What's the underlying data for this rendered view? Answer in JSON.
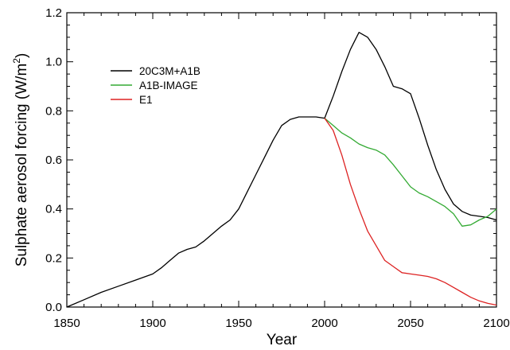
{
  "chart_data": {
    "type": "line",
    "xlabel": "Year",
    "ylabel": "Sulphate aerosol forcing (W/m",
    "ylabel_sup": "2",
    "ylabel_close": ")",
    "xlim": [
      1850,
      2100
    ],
    "ylim": [
      0,
      1.2
    ],
    "xticks": [
      1850,
      1900,
      1950,
      2000,
      2050,
      2100
    ],
    "xtick_labels": [
      "1850",
      "1900",
      "1950",
      "2000",
      "2050",
      "2100"
    ],
    "yticks": [
      0,
      0.2,
      0.4,
      0.6,
      0.8,
      1.0,
      1.2
    ],
    "ytick_labels": [
      "0.0",
      "0.2",
      "0.4",
      "0.6",
      "0.8",
      "1.0",
      "1.2"
    ],
    "grid": false,
    "legend_position": "upper-left",
    "series": [
      {
        "name": "20C3M+A1B",
        "color": "#000000",
        "x": [
          1850,
          1860,
          1870,
          1880,
          1890,
          1900,
          1905,
          1910,
          1915,
          1920,
          1925,
          1930,
          1935,
          1940,
          1945,
          1950,
          1955,
          1960,
          1965,
          1970,
          1975,
          1980,
          1985,
          1990,
          1995,
          2000,
          2005,
          2010,
          2015,
          2020,
          2025,
          2030,
          2035,
          2040,
          2045,
          2050,
          2055,
          2060,
          2065,
          2070,
          2075,
          2080,
          2085,
          2090,
          2095,
          2100
        ],
        "y": [
          0.0,
          0.03,
          0.06,
          0.085,
          0.11,
          0.135,
          0.16,
          0.19,
          0.22,
          0.235,
          0.245,
          0.27,
          0.3,
          0.33,
          0.355,
          0.4,
          0.47,
          0.54,
          0.61,
          0.68,
          0.74,
          0.765,
          0.775,
          0.775,
          0.775,
          0.77,
          0.86,
          0.96,
          1.05,
          1.12,
          1.1,
          1.05,
          0.98,
          0.9,
          0.89,
          0.87,
          0.77,
          0.66,
          0.56,
          0.48,
          0.42,
          0.39,
          0.375,
          0.37,
          0.365,
          0.355
        ]
      },
      {
        "name": "A1B-IMAGE",
        "color": "#33aa33",
        "x": [
          2000,
          2005,
          2010,
          2015,
          2020,
          2025,
          2030,
          2035,
          2040,
          2045,
          2050,
          2055,
          2060,
          2065,
          2070,
          2075,
          2080,
          2085,
          2090,
          2095,
          2100
        ],
        "y": [
          0.77,
          0.74,
          0.71,
          0.69,
          0.665,
          0.65,
          0.64,
          0.62,
          0.58,
          0.535,
          0.49,
          0.465,
          0.45,
          0.43,
          0.41,
          0.38,
          0.33,
          0.335,
          0.355,
          0.37,
          0.4
        ]
      },
      {
        "name": "E1",
        "color": "#dd2222",
        "x": [
          2000,
          2005,
          2010,
          2015,
          2020,
          2025,
          2030,
          2035,
          2040,
          2045,
          2050,
          2055,
          2060,
          2065,
          2070,
          2075,
          2080,
          2085,
          2090,
          2095,
          2100
        ],
        "y": [
          0.77,
          0.72,
          0.62,
          0.5,
          0.4,
          0.31,
          0.25,
          0.19,
          0.165,
          0.14,
          0.135,
          0.13,
          0.125,
          0.115,
          0.1,
          0.08,
          0.06,
          0.04,
          0.025,
          0.015,
          0.008
        ]
      }
    ]
  }
}
